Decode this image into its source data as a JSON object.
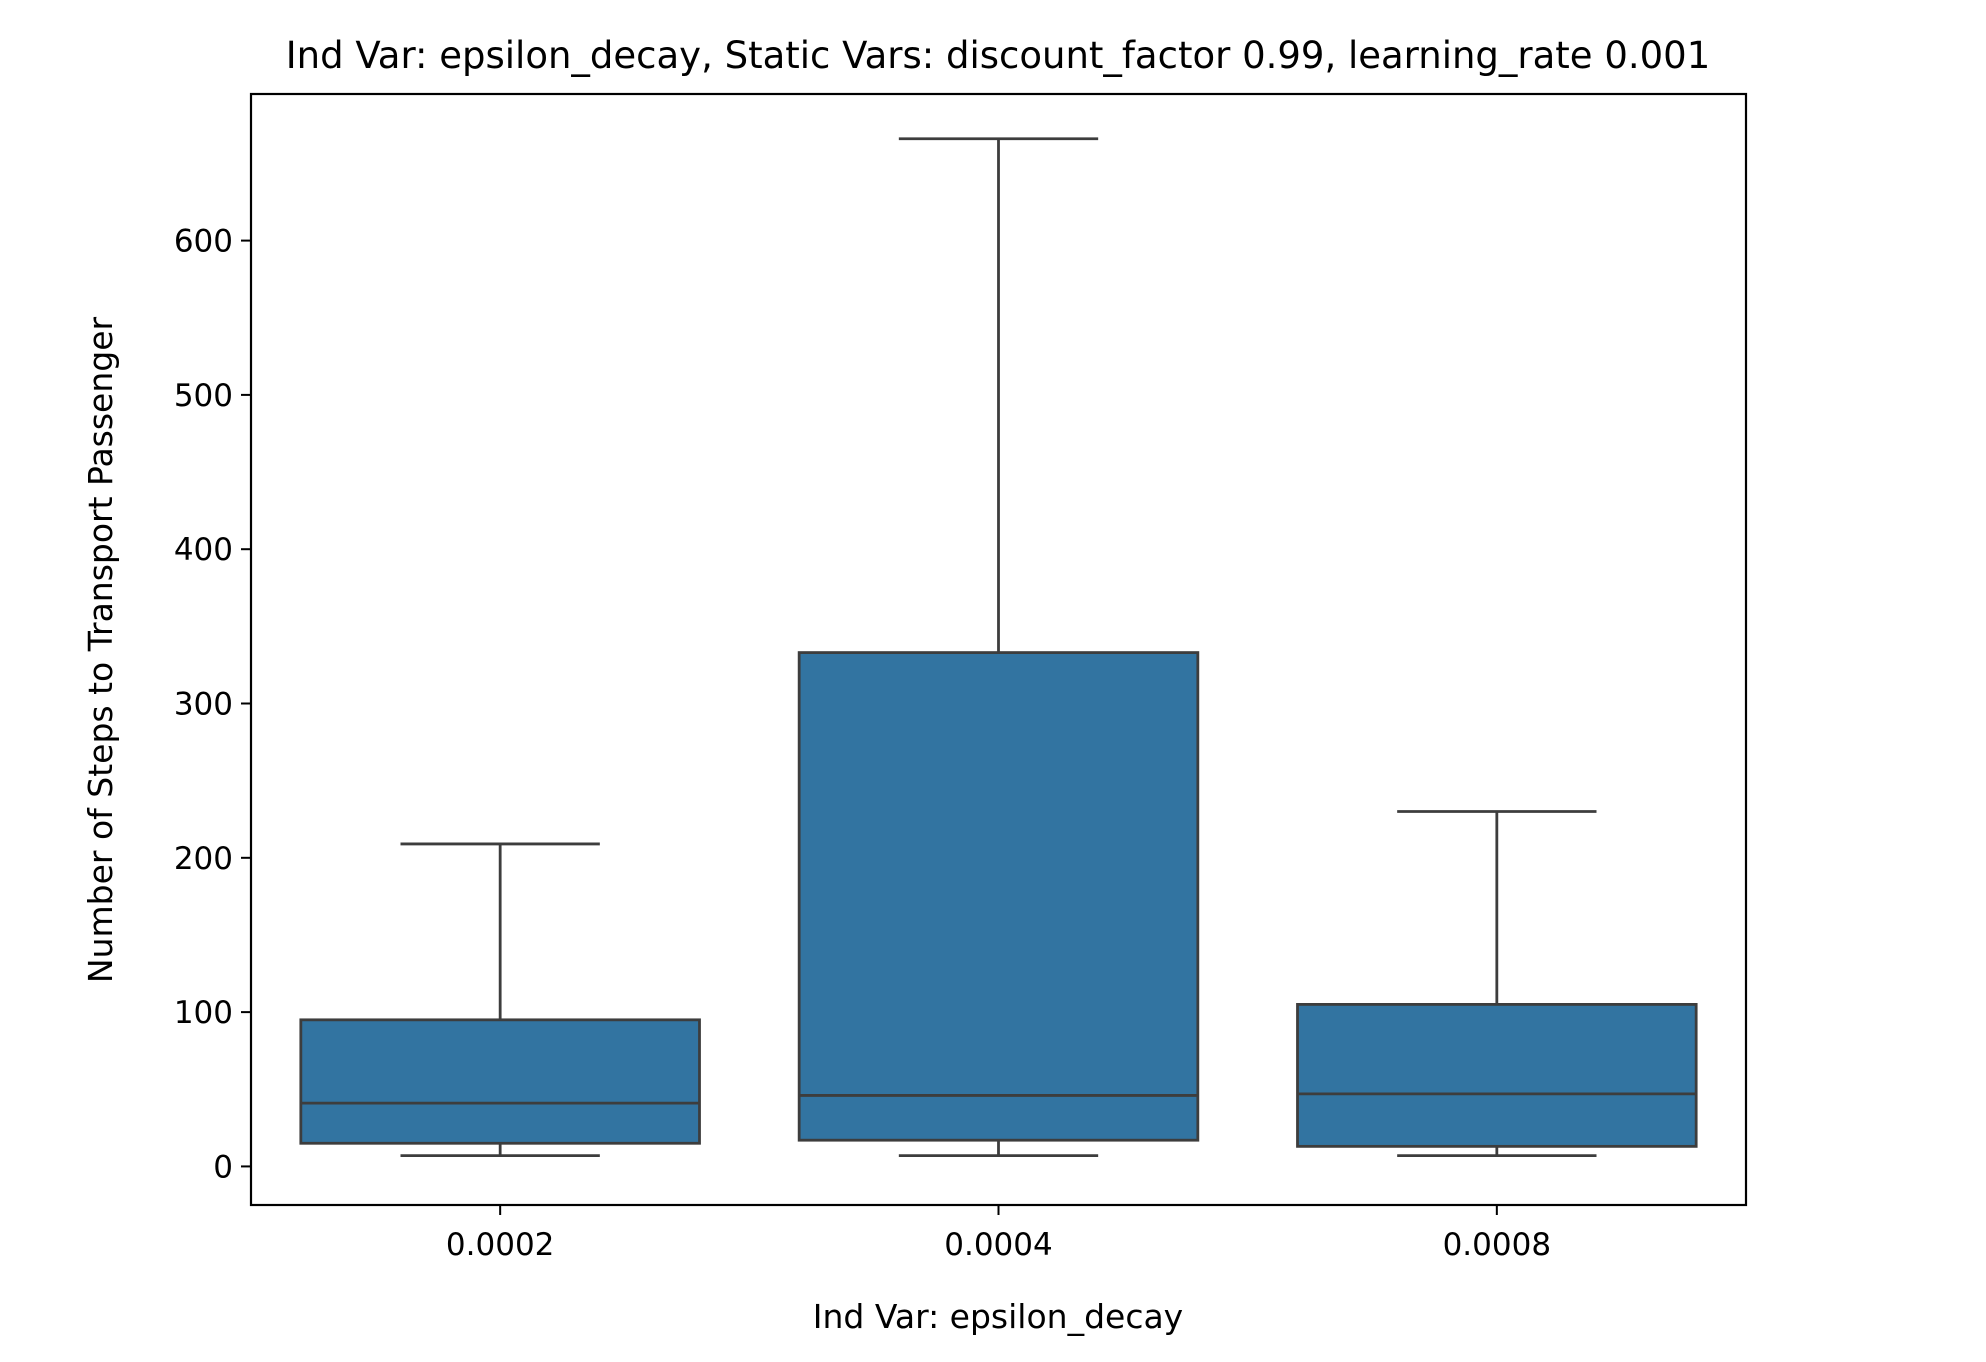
{
  "chart_data": {
    "type": "box",
    "title": "Ind Var: epsilon_decay, Static Vars: discount_factor 0.99, learning_rate 0.001",
    "xlabel": "Ind Var: epsilon_decay",
    "ylabel": "Number of Steps to Transport Passenger",
    "categories": [
      "0.0002",
      "0.0004",
      "0.0008"
    ],
    "ylim": [
      -25,
      695
    ],
    "yticks": [
      0,
      100,
      200,
      300,
      400,
      500,
      600
    ],
    "grid": false,
    "legend": "none",
    "box_color": "#3274a1",
    "line_color": "#3d3d3d",
    "boxes": [
      {
        "category": "0.0002",
        "whisker_low": 7,
        "q1": 15,
        "median": 41,
        "q3": 95,
        "whisker_high": 209
      },
      {
        "category": "0.0004",
        "whisker_low": 7,
        "q1": 17,
        "median": 46,
        "q3": 333,
        "whisker_high": 666
      },
      {
        "category": "0.0008",
        "whisker_low": 7,
        "q1": 13,
        "median": 47,
        "q3": 105,
        "whisker_high": 230
      }
    ]
  }
}
